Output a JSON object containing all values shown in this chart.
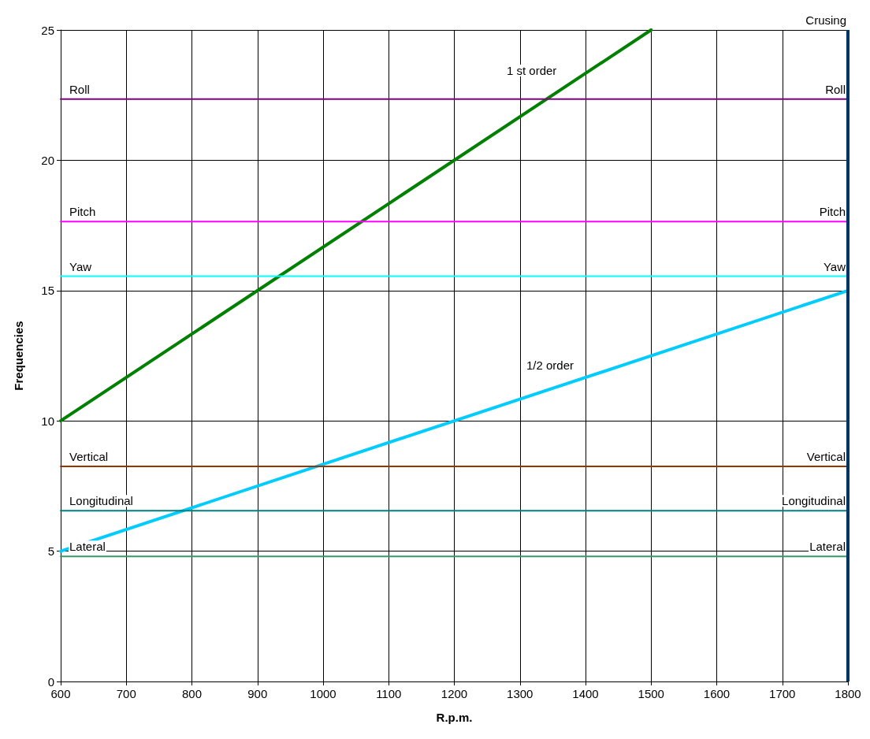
{
  "chart_data": {
    "type": "line",
    "xlabel": "R.p.m.",
    "ylabel": "Frequencies",
    "xlim": [
      600,
      1800
    ],
    "xticks": [
      600,
      700,
      800,
      900,
      1000,
      1100,
      1200,
      1300,
      1400,
      1500,
      1600,
      1700,
      1800
    ],
    "ylim": [
      0,
      25
    ],
    "yticks": [
      0,
      5,
      10,
      15,
      20,
      25
    ],
    "grid": true,
    "legend": false,
    "marker": "none",
    "line_style": "solid",
    "series": [
      {
        "name": "Roll",
        "color": "#800080",
        "x": [
          600,
          1800
        ],
        "values": [
          22.35,
          22.35
        ]
      },
      {
        "name": "Pitch",
        "color": "#ff00ff",
        "x": [
          600,
          1800
        ],
        "values": [
          17.65,
          17.65
        ]
      },
      {
        "name": "Yaw",
        "color": "#00ffff",
        "x": [
          600,
          1800
        ],
        "values": [
          15.55,
          15.55
        ]
      },
      {
        "name": "Vertical",
        "color": "#993300",
        "x": [
          600,
          1800
        ],
        "values": [
          8.25,
          8.25
        ]
      },
      {
        "name": "Longitudinal",
        "color": "#008080",
        "x": [
          600,
          1800
        ],
        "values": [
          6.55,
          6.55
        ]
      },
      {
        "name": "Lateral",
        "color": "#339966",
        "x": [
          600,
          1800
        ],
        "values": [
          4.8,
          4.8
        ]
      },
      {
        "color": "#008000",
        "x": [
          600,
          1500
        ],
        "values": [
          10,
          25
        ]
      },
      {
        "color": "#00ccff",
        "x": [
          600,
          1800
        ],
        "values": [
          5,
          15
        ]
      }
    ],
    "ref_lines": [
      {
        "axis": "x",
        "value": 1800,
        "label": "Crusing",
        "color": "#003366"
      }
    ],
    "annotations": [
      "1 st order",
      "1/2 order"
    ]
  }
}
